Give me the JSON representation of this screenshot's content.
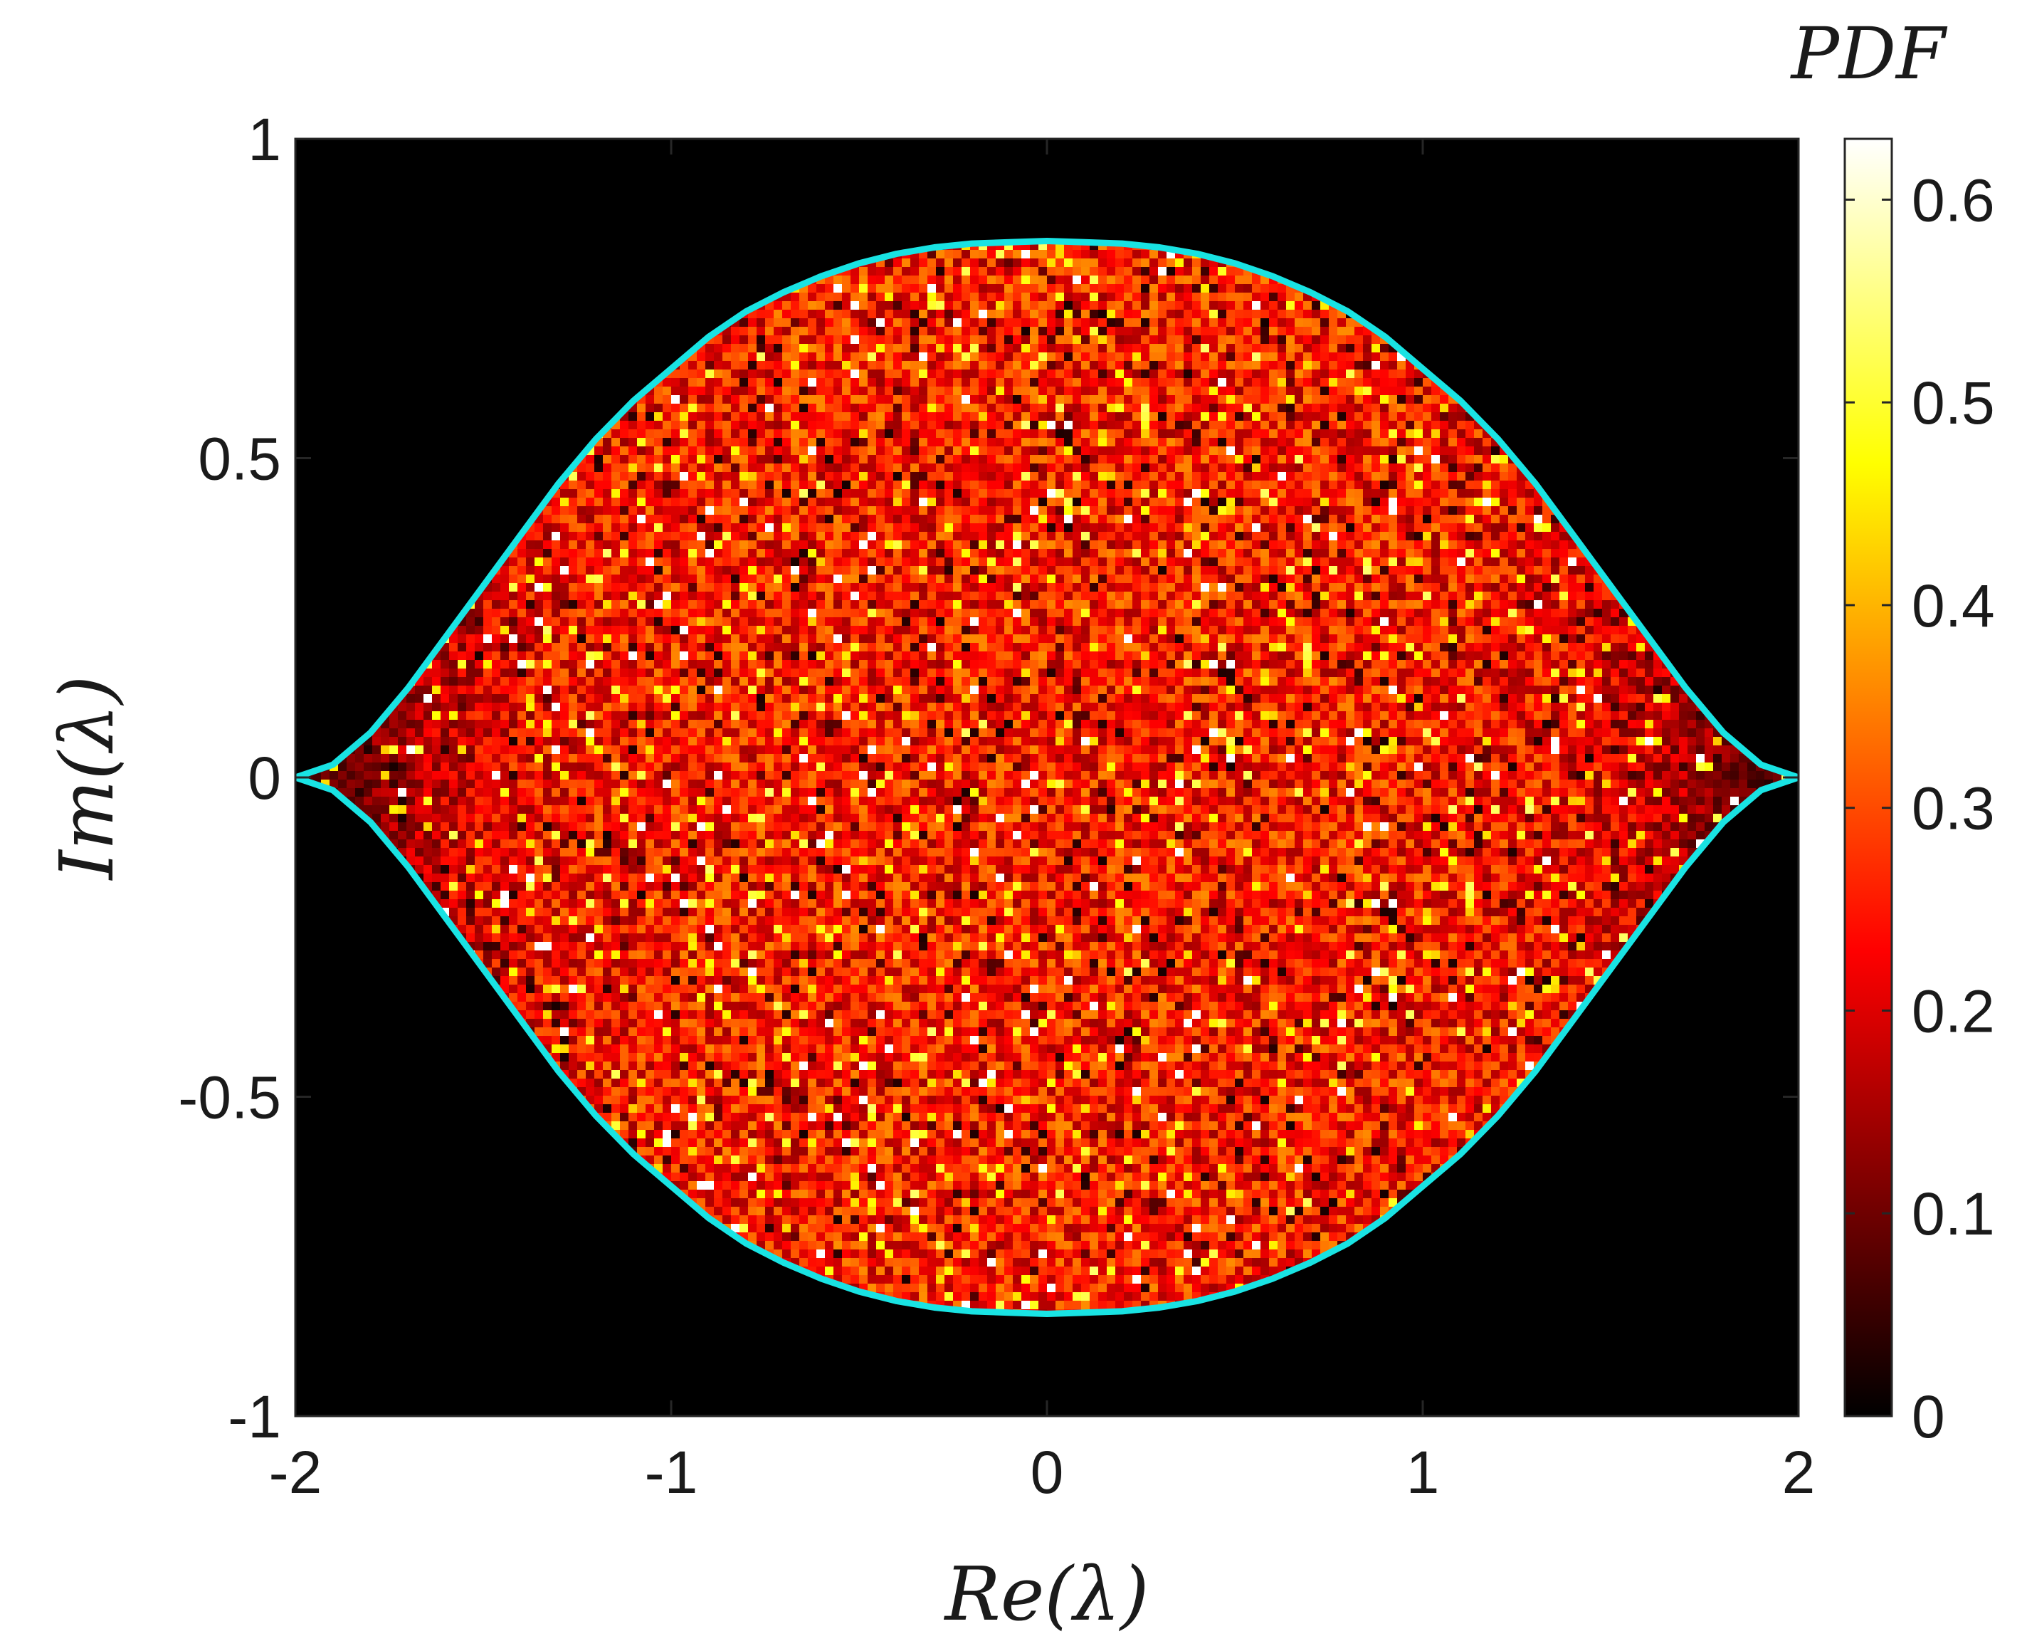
{
  "chart_data": {
    "type": "heatmap",
    "title": "",
    "xlabel": "Re(λ)",
    "ylabel": "Im(λ)",
    "xlim": [
      -2,
      2
    ],
    "ylim": [
      -1,
      1
    ],
    "x_ticks": [
      {
        "value": -2,
        "label": "-2"
      },
      {
        "value": -1,
        "label": "-1"
      },
      {
        "value": 0,
        "label": "0"
      },
      {
        "value": 1,
        "label": "1"
      },
      {
        "value": 2,
        "label": "2"
      }
    ],
    "y_ticks": [
      {
        "value": -1,
        "label": "-1"
      },
      {
        "value": -0.5,
        "label": "-0.5"
      },
      {
        "value": 0,
        "label": "0"
      },
      {
        "value": 0.5,
        "label": "0.5"
      },
      {
        "value": 1,
        "label": "1"
      }
    ],
    "colorbar": {
      "title": "PDF",
      "colormap": "hot",
      "range": [
        0,
        0.63
      ],
      "ticks": [
        {
          "value": 0,
          "label": "0"
        },
        {
          "value": 0.1,
          "label": "0.1"
        },
        {
          "value": 0.2,
          "label": "0.2"
        },
        {
          "value": 0.3,
          "label": "0.3"
        },
        {
          "value": 0.4,
          "label": "0.4"
        },
        {
          "value": 0.5,
          "label": "0.5"
        },
        {
          "value": 0.6,
          "label": "0.6"
        }
      ]
    },
    "density": {
      "x_range": [
        -2,
        2
      ],
      "y_range": [
        -0.835,
        0.835
      ],
      "background_value": 0,
      "typical_value_interior": 0.25,
      "peak_value": 0.63
    },
    "boundary": {
      "color": "#19E3E3",
      "x": [
        -2.0,
        -1.9,
        -1.8,
        -1.7,
        -1.6,
        -1.5,
        -1.4,
        -1.3,
        -1.2,
        -1.1,
        -1.0,
        -0.9,
        -0.8,
        -0.7,
        -0.6,
        -0.5,
        -0.4,
        -0.3,
        -0.2,
        -0.1,
        0.0,
        0.1,
        0.2,
        0.3,
        0.4,
        0.5,
        0.6,
        0.7,
        0.8,
        0.9,
        1.0,
        1.1,
        1.2,
        1.3,
        1.4,
        1.5,
        1.6,
        1.7,
        1.8,
        1.9,
        2.0
      ],
      "y_upper": [
        0.0,
        0.02,
        0.07,
        0.14,
        0.22,
        0.3,
        0.38,
        0.46,
        0.53,
        0.59,
        0.64,
        0.69,
        0.73,
        0.76,
        0.785,
        0.805,
        0.82,
        0.83,
        0.836,
        0.838,
        0.84,
        0.838,
        0.836,
        0.83,
        0.82,
        0.805,
        0.785,
        0.76,
        0.73,
        0.69,
        0.64,
        0.59,
        0.53,
        0.46,
        0.38,
        0.3,
        0.22,
        0.14,
        0.07,
        0.02,
        0.0
      ]
    }
  }
}
